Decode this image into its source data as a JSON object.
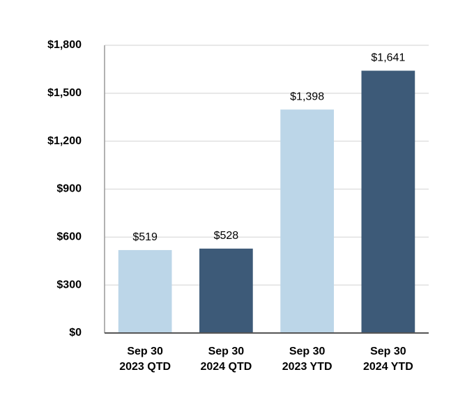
{
  "chart_data": {
    "type": "bar",
    "categories": [
      [
        "Sep 30",
        "2023 QTD"
      ],
      [
        "Sep 30",
        "2024 QTD"
      ],
      [
        "Sep 30",
        "2023 YTD"
      ],
      [
        "Sep 30",
        "2024 YTD"
      ]
    ],
    "values": [
      519,
      528,
      1398,
      1641
    ],
    "value_labels": [
      "$519",
      "$528",
      "$1,398",
      "$1,641"
    ],
    "colors": [
      "#bcd6e8",
      "#3d5a78",
      "#bcd6e8",
      "#3d5a78"
    ],
    "ylim": [
      0,
      1800
    ],
    "yticks": [
      {
        "value": 0,
        "label": "$0"
      },
      {
        "value": 300,
        "label": "$300"
      },
      {
        "value": 600,
        "label": "$600"
      },
      {
        "value": 900,
        "label": "$900"
      },
      {
        "value": 1200,
        "label": "$1,200"
      },
      {
        "value": 1500,
        "label": "$1,500"
      },
      {
        "value": 1800,
        "label": "$1,800"
      }
    ],
    "grid": true
  }
}
